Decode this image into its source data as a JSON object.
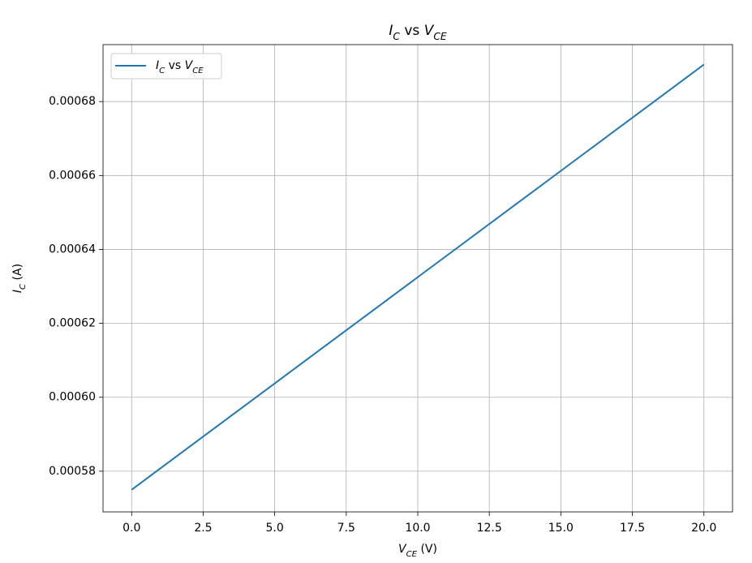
{
  "chart_data": {
    "type": "line",
    "title": "IC vs VCE",
    "xlabel": "VCE (V)",
    "ylabel": "IC (A)",
    "x": [
      0,
      5,
      10,
      15,
      20
    ],
    "series": [
      {
        "name": "IC vs VCE",
        "color": "#1f77b4",
        "values": [
          0.000575,
          0.00060375,
          0.0006325,
          0.00066125,
          0.00069
        ]
      }
    ],
    "xlim": [
      -1,
      21
    ],
    "ylim": [
      0.000569,
      0.0006954
    ],
    "xticks": [
      {
        "value": 0,
        "label": "0.0"
      },
      2.5,
      {
        "value": 5,
        "label": "5.0"
      },
      7.5,
      {
        "value": 10,
        "label": "10.0"
      },
      12.5,
      {
        "value": 15,
        "label": "15.0"
      },
      17.5,
      {
        "value": 20,
        "label": "20.0"
      }
    ],
    "yticks": [
      0.00058,
      {
        "value": 0.0006,
        "label": "0.00060"
      },
      0.00062,
      0.00064,
      0.00066,
      0.00068
    ],
    "grid": true,
    "legend": "upper left"
  }
}
